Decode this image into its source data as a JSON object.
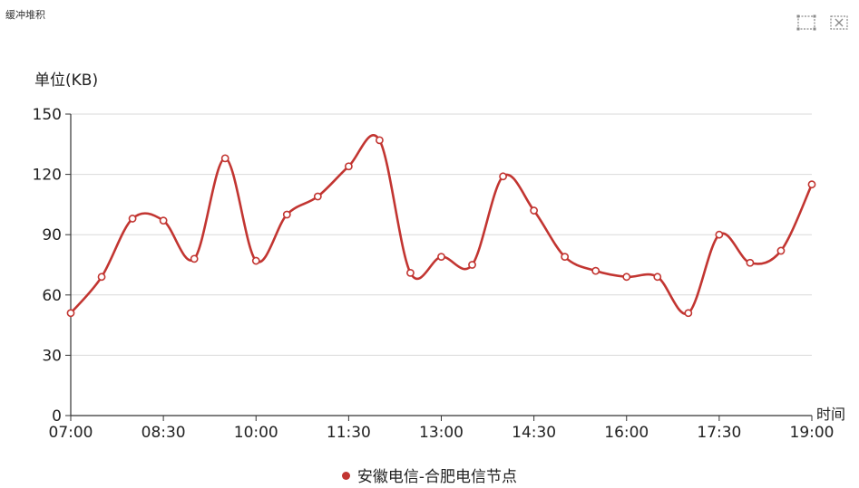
{
  "page": {
    "title": "缓冲堆积",
    "toolbar": [
      {
        "name": "zoom-icon"
      },
      {
        "name": "restore-icon"
      }
    ]
  },
  "chart_data": {
    "type": "line",
    "ylabel": "单位(KB)",
    "xlabel": "时间",
    "ylim": [
      0,
      150
    ],
    "yticks": [
      0,
      30,
      60,
      90,
      120,
      150
    ],
    "xticks": [
      "07:00",
      "08:30",
      "10:00",
      "11:30",
      "13:00",
      "14:30",
      "16:00",
      "17:30",
      "19:00"
    ],
    "x": [
      "07:00",
      "07:30",
      "08:00",
      "08:30",
      "09:00",
      "09:30",
      "10:00",
      "10:30",
      "11:00",
      "11:30",
      "12:00",
      "12:30",
      "13:00",
      "13:30",
      "14:00",
      "14:30",
      "15:00",
      "15:30",
      "16:00",
      "16:30",
      "17:00",
      "17:30",
      "18:00",
      "18:30",
      "19:00"
    ],
    "series": [
      {
        "name": "安徽电信-合肥电信节点",
        "color": "#c23531",
        "values": [
          51,
          69,
          98,
          97,
          78,
          128,
          77,
          100,
          109,
          124,
          137,
          71,
          79,
          75,
          119,
          102,
          79,
          72,
          69,
          69,
          51,
          90,
          76,
          82,
          115
        ]
      }
    ],
    "grid": true,
    "legend": "bottom-center"
  }
}
